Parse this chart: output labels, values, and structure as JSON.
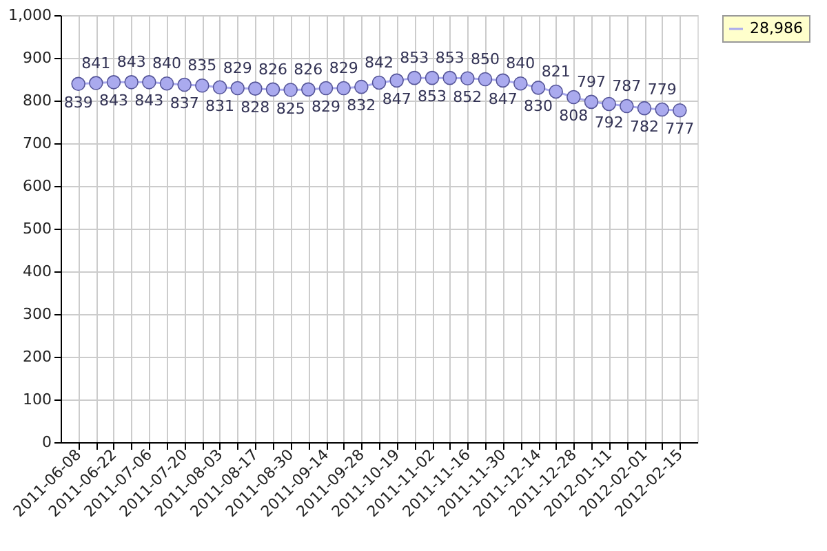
{
  "chart_data": {
    "type": "line",
    "categories": [
      "2011-06-08",
      null,
      "2011-06-22",
      null,
      "2011-07-06",
      null,
      "2011-07-20",
      null,
      "2011-08-03",
      null,
      "2011-08-17",
      null,
      "2011-08-30",
      null,
      "2011-09-14",
      null,
      "2011-09-28",
      null,
      "2011-10-19",
      null,
      "2011-11-02",
      null,
      "2011-11-16",
      null,
      "2011-11-30",
      null,
      "2011-12-14",
      null,
      "2011-12-28",
      null,
      "2012-01-11",
      null,
      "2012-02-01",
      null,
      "2012-02-15"
    ],
    "series": [
      {
        "name": "28,986",
        "color": "#aaaaee",
        "values": [
          839,
          841,
          843,
          843,
          843,
          840,
          837,
          835,
          831,
          829,
          828,
          826,
          825,
          826,
          829,
          829,
          832,
          842,
          847,
          853,
          853,
          853,
          852,
          850,
          847,
          840,
          830,
          821,
          808,
          797,
          792,
          787,
          782,
          779,
          777
        ]
      }
    ],
    "ylim": [
      0,
      1000
    ],
    "yticks": [
      0,
      100,
      200,
      300,
      400,
      500,
      600,
      700,
      800,
      900,
      {
        "value": 1000,
        "label": "1,000"
      }
    ],
    "grid": true,
    "legend": "top right",
    "marker": "circle",
    "line_style": "solid",
    "data_labels": true
  }
}
